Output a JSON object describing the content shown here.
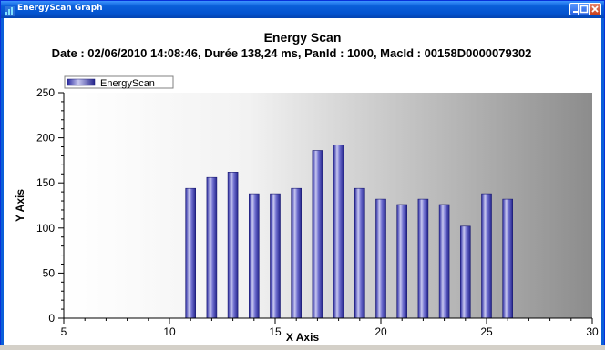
{
  "window": {
    "title": "EnergyScan Graph",
    "icon": "graph-app-icon",
    "controls": [
      "minimize-icon",
      "maximize-icon",
      "close-icon"
    ]
  },
  "colors": {
    "titlebar": "#0454d0",
    "bar_light": "#c8c8f0",
    "bar_dark": "#2828a0"
  },
  "chart_data": {
    "type": "bar",
    "title": "Energy Scan",
    "subtitle": "Date : 02/06/2010 14:08:46, Durée 138,24 ms, PanId : 1000, MacId : 00158D0000079302",
    "xlabel": "X Axis",
    "ylabel": "Y Axis",
    "xlim": [
      5,
      30
    ],
    "ylim": [
      0,
      250
    ],
    "xticks": [
      "5",
      "10",
      "15",
      "20",
      "25",
      "30"
    ],
    "yticks": [
      "0",
      "50",
      "100",
      "150",
      "200",
      "250"
    ],
    "legend_placement": "top-left",
    "grid": false,
    "series": [
      {
        "name": "EnergyScan",
        "x": [
          11,
          12,
          13,
          14,
          15,
          16,
          17,
          18,
          19,
          20,
          21,
          22,
          23,
          24,
          25,
          26
        ],
        "values": [
          144,
          156,
          162,
          138,
          138,
          144,
          186,
          192,
          144,
          132,
          126,
          132,
          126,
          102,
          138,
          132
        ]
      }
    ]
  }
}
